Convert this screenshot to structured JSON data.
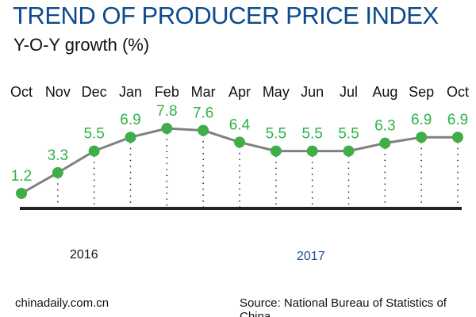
{
  "chart_data": {
    "type": "line",
    "title": "TREND OF PRODUCER PRICE INDEX",
    "ylabel": "Y-O-Y growth (%)",
    "categories": [
      "Oct",
      "Nov",
      "Dec",
      "Jan",
      "Feb",
      "Mar",
      "Apr",
      "May",
      "Jun",
      "Jul",
      "Aug",
      "Sep",
      "Oct"
    ],
    "values": [
      1.2,
      3.3,
      5.5,
      6.9,
      7.8,
      7.6,
      6.4,
      5.5,
      5.5,
      5.5,
      6.3,
      6.9,
      6.9
    ],
    "year_labels": [
      "2016",
      "2017"
    ],
    "grid": false,
    "colors": {
      "title": "#0d4a8e",
      "line": "#808080",
      "marker": "#3fae49",
      "value_label": "#2eb34a",
      "year_2017": "#1f4e8c"
    }
  },
  "footer": {
    "site": "chinadaily.com.cn",
    "source": "Source: National Bureau of Statistics of China"
  }
}
